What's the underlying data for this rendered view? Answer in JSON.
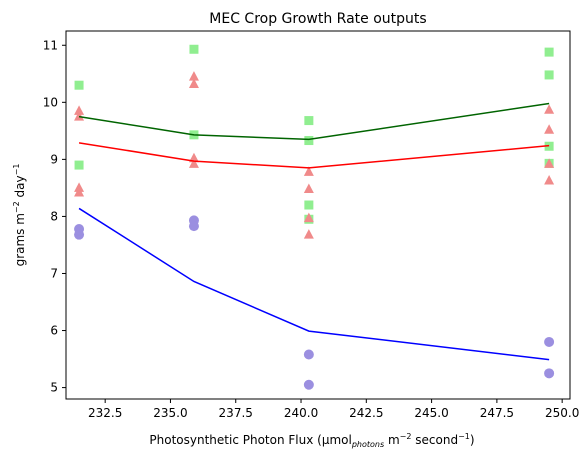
{
  "chart_data": {
    "type": "scatter",
    "title": "MEC Crop Growth Rate outputs",
    "xlabel": {
      "prefix": "Photosynthetic Photon Flux (μmol",
      "sub": "photons",
      "mid": " m",
      "sup1": "−2",
      "mid2": " second",
      "sup2": "−1",
      "suffix": ")"
    },
    "ylabel": {
      "prefix": "grams m",
      "sup1": "−2",
      "mid": " day",
      "sup2": "−1"
    },
    "xlim": [
      231.0,
      250.3
    ],
    "ylim": [
      4.8,
      11.25
    ],
    "xticks": [
      232.5,
      235.0,
      237.5,
      240.0,
      242.5,
      245.0,
      247.5,
      250.0
    ],
    "xtick_labels": [
      "232.5",
      "235.0",
      "237.5",
      "240.0",
      "242.5",
      "245.0",
      "247.5",
      "250.0"
    ],
    "yticks": [
      5,
      6,
      7,
      8,
      9,
      10,
      11
    ],
    "ytick_labels": [
      "5",
      "6",
      "7",
      "8",
      "9",
      "10",
      "11"
    ],
    "grid": false,
    "series": [
      {
        "marker": "square",
        "color": "#90ee90",
        "points": [
          [
            231.5,
            10.3
          ],
          [
            231.5,
            8.9
          ],
          [
            235.9,
            10.93
          ],
          [
            235.9,
            9.43
          ],
          [
            240.3,
            9.68
          ],
          [
            240.3,
            9.33
          ],
          [
            240.3,
            8.2
          ],
          [
            240.3,
            7.95
          ],
          [
            249.5,
            10.88
          ],
          [
            249.5,
            10.48
          ],
          [
            249.5,
            9.23
          ],
          [
            249.5,
            8.93
          ]
        ]
      },
      {
        "marker": "triangle",
        "color": "#f08a8a",
        "points": [
          [
            231.5,
            9.85
          ],
          [
            231.5,
            9.75
          ],
          [
            231.5,
            8.5
          ],
          [
            231.5,
            8.42
          ],
          [
            235.9,
            10.45
          ],
          [
            235.9,
            10.32
          ],
          [
            235.9,
            9.02
          ],
          [
            235.9,
            8.92
          ],
          [
            240.3,
            8.78
          ],
          [
            240.3,
            8.48
          ],
          [
            240.3,
            7.97
          ],
          [
            240.3,
            7.68
          ],
          [
            249.5,
            9.87
          ],
          [
            249.5,
            9.52
          ],
          [
            249.5,
            8.92
          ],
          [
            249.5,
            8.63
          ]
        ]
      },
      {
        "marker": "circle",
        "color": "#9b8fe0",
        "points": [
          [
            231.5,
            7.78
          ],
          [
            231.5,
            7.68
          ],
          [
            235.9,
            7.93
          ],
          [
            235.9,
            7.83
          ],
          [
            240.3,
            5.58
          ],
          [
            240.3,
            5.05
          ],
          [
            249.5,
            5.8
          ],
          [
            249.5,
            5.25
          ]
        ]
      }
    ],
    "lines": [
      {
        "color": "#006400",
        "x": [
          231.5,
          235.9,
          240.3,
          249.5
        ],
        "y": [
          9.75,
          9.43,
          9.35,
          9.98
        ]
      },
      {
        "color": "#ff0000",
        "x": [
          231.5,
          235.9,
          240.3,
          249.5
        ],
        "y": [
          9.29,
          8.97,
          8.85,
          9.24
        ]
      },
      {
        "color": "#0000ff",
        "x": [
          231.5,
          235.9,
          240.3,
          249.5
        ],
        "y": [
          8.14,
          6.86,
          5.99,
          5.49
        ]
      }
    ]
  }
}
